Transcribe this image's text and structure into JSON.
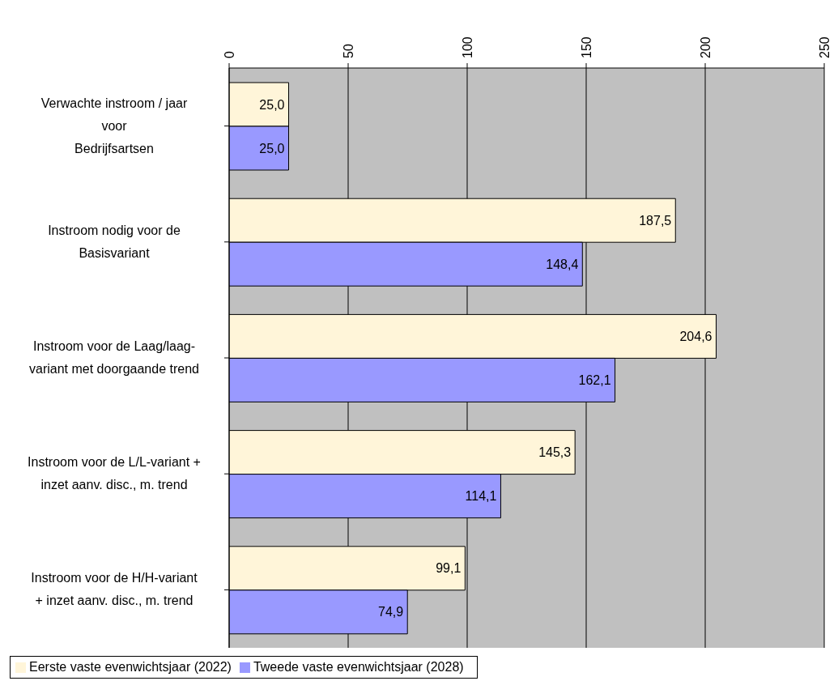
{
  "chart_data": {
    "type": "bar",
    "orientation": "horizontal",
    "categories": [
      "Verwachte instroom / jaar\nvoor\nBedrijfsartsen",
      "Instroom nodig voor de\nBasisvariant",
      "Instroom voor de Laag/laag-\nvariant met doorgaande trend",
      "Instroom voor de L/L-variant +\ninzet aanv. disc., m. trend",
      "Instroom voor de H/H-variant\n+ inzet aanv. disc., m. trend"
    ],
    "series": [
      {
        "name": "Eerste vaste evenwichtsjaar (2022)",
        "color": "#fff5d9",
        "values": [
          25.0,
          187.5,
          204.6,
          145.3,
          99.1
        ],
        "value_labels": [
          "25,0",
          "187,5",
          "204,6",
          "145,3",
          "99,1"
        ]
      },
      {
        "name": "Tweede vaste evenwichtsjaar (2028)",
        "color": "#9999ff",
        "values": [
          25.0,
          148.4,
          162.1,
          114.1,
          74.9
        ],
        "value_labels": [
          "25,0",
          "148,4",
          "162,1",
          "114,1",
          "74,9"
        ]
      }
    ],
    "xlim": [
      0,
      250
    ],
    "xticks": [
      0,
      50,
      100,
      150,
      200,
      250
    ],
    "grid": "x",
    "legend": "bottom left"
  }
}
